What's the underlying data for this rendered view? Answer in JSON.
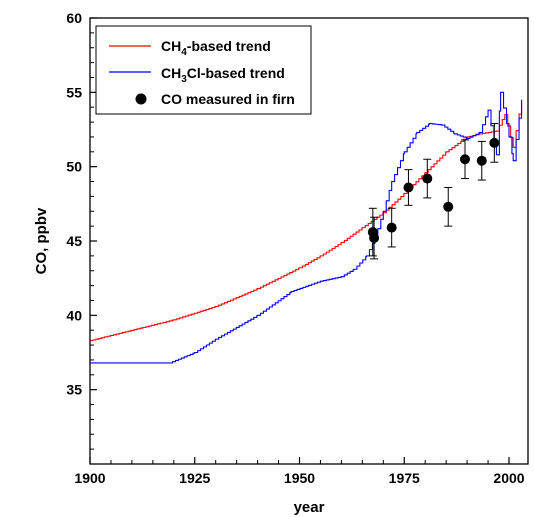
{
  "chart_data": {
    "type": "line",
    "xlabel": "year",
    "ylabel": "CO, ppbv",
    "xlim": [
      1900,
      2005
    ],
    "ylim": [
      30,
      60
    ],
    "xticks": [
      "1900",
      "1925",
      "1950",
      "1975",
      "2000"
    ],
    "yticks": [
      "35",
      "40",
      "45",
      "50",
      "55",
      "60"
    ],
    "legend_position": "top-left",
    "series": [
      {
        "name": "CH4-based trend",
        "legend_main": "CH",
        "legend_sub": "4",
        "legend_rest": "-based trend",
        "color": "#ff0000",
        "x": [
          1900,
          1920,
          1930,
          1940,
          1950,
          1955,
          1960,
          1965,
          1970,
          1975,
          1980,
          1985,
          1990,
          1993,
          1997,
          1999,
          2001,
          2003
        ],
        "y": [
          38.3,
          39.7,
          40.6,
          41.8,
          43.2,
          44.0,
          44.9,
          45.9,
          46.9,
          48.2,
          49.6,
          51.0,
          52.0,
          52.2,
          52.4,
          53.5,
          51.3,
          54.5
        ]
      },
      {
        "name": "CH3Cl-based trend",
        "legend_main": "CH",
        "legend_sub": "3",
        "legend_rest": "Cl-based trend",
        "color": "#0000ff",
        "x": [
          1900,
          1919,
          1925,
          1930,
          1940,
          1948,
          1955,
          1960,
          1963,
          1966,
          1968,
          1970,
          1972,
          1975,
          1978,
          1981,
          1984,
          1987,
          1990,
          1993,
          1995,
          1997,
          1998,
          2000,
          2001,
          2003
        ],
        "y": [
          36.8,
          36.8,
          37.5,
          38.4,
          40.0,
          41.6,
          42.3,
          42.6,
          43.1,
          44.0,
          45.2,
          47.0,
          49.0,
          51.0,
          52.3,
          52.9,
          52.8,
          52.2,
          51.9,
          52.3,
          53.8,
          50.8,
          55.0,
          52.0,
          50.4,
          54.5
        ]
      }
    ],
    "measured": {
      "name": "CO measured in firn",
      "color": "#000000",
      "points": [
        {
          "x": 1967.5,
          "y": 45.6,
          "err": 1.6
        },
        {
          "x": 1967.8,
          "y": 45.2,
          "err": 1.4
        },
        {
          "x": 1972.0,
          "y": 45.9,
          "err": 1.3
        },
        {
          "x": 1976.0,
          "y": 48.6,
          "err": 1.2
        },
        {
          "x": 1980.5,
          "y": 49.2,
          "err": 1.3
        },
        {
          "x": 1985.5,
          "y": 47.3,
          "err": 1.3
        },
        {
          "x": 1989.5,
          "y": 50.5,
          "err": 1.3
        },
        {
          "x": 1993.5,
          "y": 50.4,
          "err": 1.3
        },
        {
          "x": 1996.5,
          "y": 51.6,
          "err": 1.3
        }
      ]
    }
  }
}
